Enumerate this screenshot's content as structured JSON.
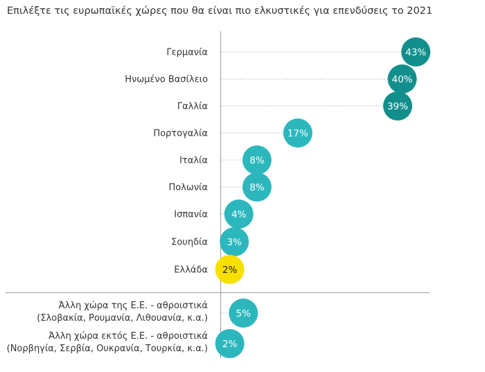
{
  "chart_data": {
    "type": "scatter",
    "title": "Επιλέξτε τις ευρωπαϊκές χώρες που θα είναι πιο ελκυστικές για επενδύσεις το 2021",
    "value_suffix": "%",
    "grid": false,
    "categories": [
      [
        "Γερμανία"
      ],
      [
        "Ηνωμένο Βασίλειο"
      ],
      [
        "Γαλλία"
      ],
      [
        "Πορτογαλία"
      ],
      [
        "Ιταλία"
      ],
      [
        "Πολωνία"
      ],
      [
        "Ισπανία"
      ],
      [
        "Σουηδία"
      ],
      [
        "Ελλάδα"
      ],
      [
        "Άλλη χώρα της Ε.Ε. - αθροιστικά",
        "(Σλοβακία, Ρουμανία, Λιθουανία, κ.α.)"
      ],
      [
        "Άλλη χώρα εκτός Ε.Ε. - αθροιστικά",
        "(Νορβηγία, Σερβία, Ουκρανία, Τουρκία, κ.α.)"
      ]
    ],
    "values": [
      43,
      40,
      39,
      17,
      8,
      8,
      4,
      3,
      2,
      5,
      2
    ],
    "colors": [
      "#128f8c",
      "#128f8c",
      "#128f8c",
      "#2cb7bd",
      "#2cb7bd",
      "#2cb7bd",
      "#2cb7bd",
      "#2cb7bd",
      "#f7e000",
      "#2cb7bd",
      "#2cb7bd"
    ],
    "xlim": [
      0,
      45
    ]
  }
}
